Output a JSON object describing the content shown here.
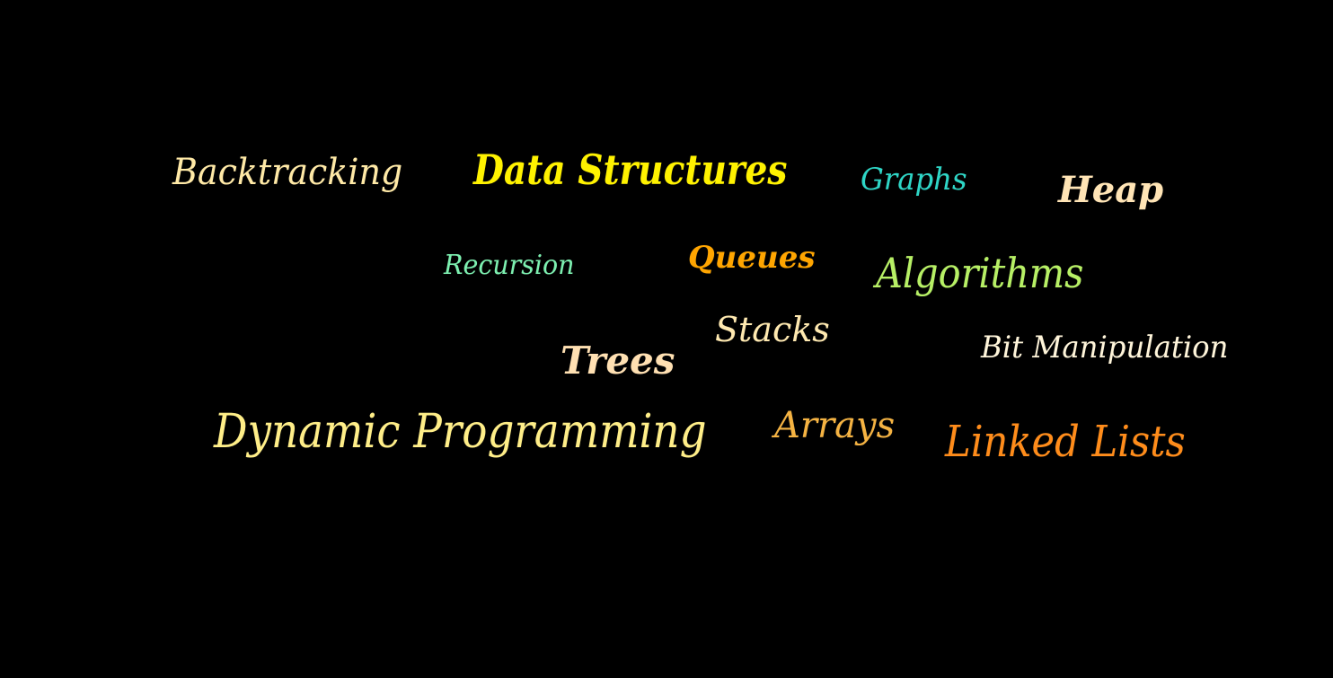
{
  "words": [
    {
      "text": "Backtracking",
      "color": "#FFE9A6"
    },
    {
      "text": "Data Structures",
      "color": "#FFF200"
    },
    {
      "text": "Graphs",
      "color": "#2DD7C7"
    },
    {
      "text": "Heap",
      "color": "#FFE4B5"
    },
    {
      "text": "Recursion",
      "color": "#7CF0B0"
    },
    {
      "text": "Queues",
      "color": "#FFA500"
    },
    {
      "text": "Algorithms",
      "color": "#B7F065"
    },
    {
      "text": "Stacks",
      "color": "#FFE9B0"
    },
    {
      "text": "Bit Manipulation",
      "color": "#FFF5DA"
    },
    {
      "text": "Trees",
      "color": "#FFE0B2"
    },
    {
      "text": "Dynamic Programming",
      "color": "#FFEE88"
    },
    {
      "text": "Arrays",
      "color": "#F5B342"
    },
    {
      "text": "Linked Lists",
      "color": "#FF8C1A"
    }
  ]
}
